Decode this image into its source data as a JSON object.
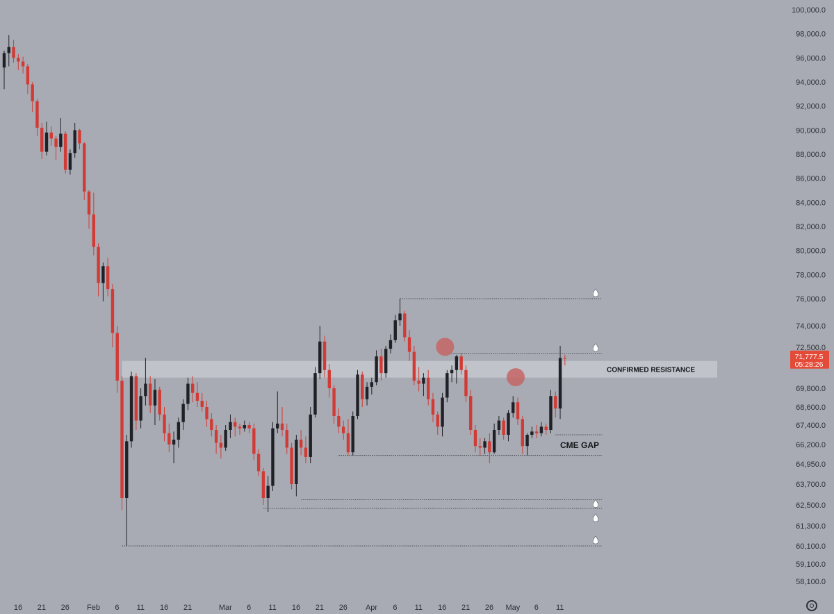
{
  "colors": {
    "background": "#a8abb3",
    "up": "#1f2126",
    "down": "#d23b35",
    "resistance_zone": "#c4c7cd",
    "marker": "#c56565",
    "price_badge": "#e44a38",
    "text": "#2c2f36"
  },
  "price_badge": {
    "price": "71,777.5",
    "countdown": "05:28:26"
  },
  "chart_data": {
    "type": "candlestick",
    "y_axis": {
      "ticks": [
        100000,
        98000,
        96000,
        94000,
        92000,
        90000,
        88000,
        86000,
        84000,
        82000,
        80000,
        78000,
        76000,
        74000,
        72500,
        69800,
        68600,
        67400,
        66200,
        64950,
        63700,
        62500,
        61300,
        60100,
        59100,
        58100
      ],
      "tick_labels": [
        "100,000.0",
        "98,000.0",
        "96,000.0",
        "94,000.0",
        "92,000.0",
        "90,000.0",
        "88,000.0",
        "86,000.0",
        "84,000.0",
        "82,000.0",
        "80,000.0",
        "78,000.0",
        "76,000.0",
        "74,000.0",
        "72,500.0",
        "69,800.0",
        "68,600.0",
        "67,400.0",
        "66,200.0",
        "64,950.0",
        "63,700.0",
        "62,500.0",
        "61,300.0",
        "60,100.0",
        "59,100.0",
        "58,100.0"
      ]
    },
    "x_axis": {
      "ticks": [
        "2025-01-16",
        "2025-01-21",
        "2025-01-26",
        "2025-02-01",
        "2025-02-06",
        "2025-02-11",
        "2025-02-16",
        "2025-02-21",
        "2025-03-01",
        "2025-03-06",
        "2025-03-11",
        "2025-03-16",
        "2025-03-21",
        "2025-03-26",
        "2025-04-01",
        "2025-04-06",
        "2025-04-11",
        "2025-04-16",
        "2025-04-21",
        "2025-04-26",
        "2025-05-01",
        "2025-05-06",
        "2025-05-11"
      ],
      "tick_labels": [
        "16",
        "21",
        "26",
        "Feb",
        "6",
        "11",
        "16",
        "21",
        "Mar",
        "6",
        "11",
        "16",
        "21",
        "26",
        "Apr",
        "6",
        "11",
        "16",
        "21",
        "26",
        "May",
        "6",
        "11"
      ]
    },
    "candles": [
      {
        "date": "2025-01-16",
        "o": 95200,
        "h": 96600,
        "l": 93400,
        "c": 96400
      },
      {
        "date": "2025-01-17",
        "o": 96400,
        "h": 97900,
        "l": 95300,
        "c": 96900
      },
      {
        "date": "2025-01-18",
        "o": 96900,
        "h": 97500,
        "l": 95600,
        "c": 96000
      },
      {
        "date": "2025-01-19",
        "o": 96000,
        "h": 96300,
        "l": 95000,
        "c": 95700
      },
      {
        "date": "2025-01-20",
        "o": 95700,
        "h": 96100,
        "l": 94700,
        "c": 95300
      },
      {
        "date": "2025-01-21",
        "o": 95300,
        "h": 95500,
        "l": 93000,
        "c": 93800
      },
      {
        "date": "2025-01-22",
        "o": 93800,
        "h": 94000,
        "l": 91500,
        "c": 92400
      },
      {
        "date": "2025-01-23",
        "o": 92400,
        "h": 92600,
        "l": 89500,
        "c": 90200
      },
      {
        "date": "2025-01-24",
        "o": 90200,
        "h": 90600,
        "l": 87600,
        "c": 88200
      },
      {
        "date": "2025-01-25",
        "o": 88200,
        "h": 90700,
        "l": 87900,
        "c": 89800
      },
      {
        "date": "2025-01-26",
        "o": 89800,
        "h": 90300,
        "l": 88700,
        "c": 89300
      },
      {
        "date": "2025-01-27",
        "o": 89300,
        "h": 89500,
        "l": 87500,
        "c": 88600
      },
      {
        "date": "2025-01-28",
        "o": 88600,
        "h": 91000,
        "l": 88200,
        "c": 89700
      },
      {
        "date": "2025-01-29",
        "o": 89700,
        "h": 89900,
        "l": 86400,
        "c": 86700
      },
      {
        "date": "2025-01-30",
        "o": 86700,
        "h": 88400,
        "l": 86300,
        "c": 88100
      },
      {
        "date": "2025-01-31",
        "o": 88100,
        "h": 90600,
        "l": 87700,
        "c": 90000
      },
      {
        "date": "2025-02-01",
        "o": 90000,
        "h": 90100,
        "l": 88400,
        "c": 88900
      },
      {
        "date": "2025-02-02",
        "o": 88900,
        "h": 89000,
        "l": 84200,
        "c": 84900
      },
      {
        "date": "2025-02-03",
        "o": 84900,
        "h": 85000,
        "l": 81800,
        "c": 83000
      },
      {
        "date": "2025-02-04",
        "o": 83000,
        "h": 84800,
        "l": 79600,
        "c": 80300
      },
      {
        "date": "2025-02-05",
        "o": 80300,
        "h": 80600,
        "l": 76200,
        "c": 77300
      },
      {
        "date": "2025-02-06",
        "o": 77300,
        "h": 79000,
        "l": 75800,
        "c": 78700
      },
      {
        "date": "2025-02-07",
        "o": 78700,
        "h": 79400,
        "l": 76200,
        "c": 76800
      },
      {
        "date": "2025-02-08",
        "o": 76800,
        "h": 77200,
        "l": 72500,
        "c": 73500
      },
      {
        "date": "2025-02-09",
        "o": 73500,
        "h": 74000,
        "l": 69500,
        "c": 70300
      },
      {
        "date": "2025-02-10",
        "o": 70300,
        "h": 70600,
        "l": 62200,
        "c": 62900
      },
      {
        "date": "2025-02-11",
        "o": 62900,
        "h": 66800,
        "l": 60100,
        "c": 66400
      },
      {
        "date": "2025-02-12",
        "o": 66400,
        "h": 70900,
        "l": 66000,
        "c": 70600
      },
      {
        "date": "2025-02-13",
        "o": 70600,
        "h": 70800,
        "l": 67100,
        "c": 67700
      },
      {
        "date": "2025-02-14",
        "o": 67700,
        "h": 69800,
        "l": 67200,
        "c": 69300
      },
      {
        "date": "2025-02-15",
        "o": 69300,
        "h": 71800,
        "l": 68700,
        "c": 70100
      },
      {
        "date": "2025-02-16",
        "o": 70100,
        "h": 70600,
        "l": 68200,
        "c": 68700
      },
      {
        "date": "2025-02-17",
        "o": 68700,
        "h": 70400,
        "l": 67400,
        "c": 69700
      },
      {
        "date": "2025-02-18",
        "o": 69700,
        "h": 69900,
        "l": 67700,
        "c": 68100
      },
      {
        "date": "2025-02-19",
        "o": 68100,
        "h": 68600,
        "l": 66400,
        "c": 66900
      },
      {
        "date": "2025-02-20",
        "o": 66900,
        "h": 67500,
        "l": 65700,
        "c": 66200
      },
      {
        "date": "2025-02-21",
        "o": 66200,
        "h": 67000,
        "l": 65000,
        "c": 66500
      },
      {
        "date": "2025-02-22",
        "o": 66500,
        "h": 67900,
        "l": 66000,
        "c": 67600
      },
      {
        "date": "2025-02-23",
        "o": 67600,
        "h": 69100,
        "l": 67100,
        "c": 68800
      },
      {
        "date": "2025-02-24",
        "o": 68800,
        "h": 70500,
        "l": 68400,
        "c": 70100
      },
      {
        "date": "2025-02-25",
        "o": 70100,
        "h": 70600,
        "l": 68900,
        "c": 69500
      },
      {
        "date": "2025-02-26",
        "o": 69500,
        "h": 70200,
        "l": 68600,
        "c": 69000
      },
      {
        "date": "2025-02-27",
        "o": 69000,
        "h": 69500,
        "l": 68300,
        "c": 68600
      },
      {
        "date": "2025-02-28",
        "o": 68600,
        "h": 69000,
        "l": 67300,
        "c": 67800
      },
      {
        "date": "2025-03-01",
        "o": 67800,
        "h": 68200,
        "l": 66700,
        "c": 67100
      },
      {
        "date": "2025-03-02",
        "o": 67100,
        "h": 67400,
        "l": 65600,
        "c": 66300
      },
      {
        "date": "2025-03-03",
        "o": 66300,
        "h": 66800,
        "l": 65300,
        "c": 66000
      },
      {
        "date": "2025-03-04",
        "o": 66000,
        "h": 67400,
        "l": 65800,
        "c": 67100
      },
      {
        "date": "2025-03-05",
        "o": 67100,
        "h": 68100,
        "l": 66600,
        "c": 67600
      },
      {
        "date": "2025-03-06",
        "o": 67600,
        "h": 67900,
        "l": 66700,
        "c": 67300
      },
      {
        "date": "2025-03-07",
        "o": 67300,
        "h": 67500,
        "l": 66800,
        "c": 67200
      },
      {
        "date": "2025-03-08",
        "o": 67200,
        "h": 67700,
        "l": 67000,
        "c": 67400
      },
      {
        "date": "2025-03-09",
        "o": 67400,
        "h": 67600,
        "l": 66900,
        "c": 67200
      },
      {
        "date": "2025-03-10",
        "o": 67200,
        "h": 67500,
        "l": 65200,
        "c": 65600
      },
      {
        "date": "2025-03-11",
        "o": 65600,
        "h": 65900,
        "l": 64200,
        "c": 64500
      },
      {
        "date": "2025-03-12",
        "o": 64500,
        "h": 64700,
        "l": 62500,
        "c": 62900
      },
      {
        "date": "2025-03-13",
        "o": 62900,
        "h": 64200,
        "l": 62100,
        "c": 63600
      },
      {
        "date": "2025-03-14",
        "o": 63600,
        "h": 67600,
        "l": 63300,
        "c": 67200
      },
      {
        "date": "2025-03-15",
        "o": 67200,
        "h": 69600,
        "l": 66900,
        "c": 67500
      },
      {
        "date": "2025-03-16",
        "o": 67500,
        "h": 68600,
        "l": 66700,
        "c": 67100
      },
      {
        "date": "2025-03-17",
        "o": 67100,
        "h": 67500,
        "l": 65600,
        "c": 66000
      },
      {
        "date": "2025-03-18",
        "o": 66000,
        "h": 66300,
        "l": 63400,
        "c": 63700
      },
      {
        "date": "2025-03-19",
        "o": 63700,
        "h": 66800,
        "l": 63000,
        "c": 66500
      },
      {
        "date": "2025-03-20",
        "o": 66500,
        "h": 67100,
        "l": 65500,
        "c": 66000
      },
      {
        "date": "2025-03-21",
        "o": 66000,
        "h": 66700,
        "l": 65000,
        "c": 65400
      },
      {
        "date": "2025-03-22",
        "o": 65400,
        "h": 68600,
        "l": 65000,
        "c": 68100
      },
      {
        "date": "2025-03-23",
        "o": 68100,
        "h": 71200,
        "l": 67900,
        "c": 70800
      },
      {
        "date": "2025-03-24",
        "o": 70800,
        "h": 74000,
        "l": 70400,
        "c": 72900
      },
      {
        "date": "2025-03-25",
        "o": 72900,
        "h": 73300,
        "l": 70500,
        "c": 71000
      },
      {
        "date": "2025-03-26",
        "o": 71000,
        "h": 71400,
        "l": 69200,
        "c": 69800
      },
      {
        "date": "2025-03-27",
        "o": 69800,
        "h": 70000,
        "l": 67500,
        "c": 68000
      },
      {
        "date": "2025-03-28",
        "o": 68000,
        "h": 68500,
        "l": 66900,
        "c": 67300
      },
      {
        "date": "2025-03-29",
        "o": 67300,
        "h": 67700,
        "l": 66500,
        "c": 66900
      },
      {
        "date": "2025-03-30",
        "o": 66900,
        "h": 67800,
        "l": 65500,
        "c": 65700
      },
      {
        "date": "2025-03-31",
        "o": 65700,
        "h": 68300,
        "l": 65500,
        "c": 68000
      },
      {
        "date": "2025-04-01",
        "o": 68000,
        "h": 71000,
        "l": 67800,
        "c": 70700
      },
      {
        "date": "2025-04-02",
        "o": 70700,
        "h": 70900,
        "l": 68600,
        "c": 69100
      },
      {
        "date": "2025-04-03",
        "o": 69100,
        "h": 70200,
        "l": 68700,
        "c": 69900
      },
      {
        "date": "2025-04-04",
        "o": 69900,
        "h": 70500,
        "l": 69400,
        "c": 70200
      },
      {
        "date": "2025-04-05",
        "o": 70200,
        "h": 72300,
        "l": 70000,
        "c": 71900
      },
      {
        "date": "2025-04-06",
        "o": 71900,
        "h": 72400,
        "l": 70300,
        "c": 70800
      },
      {
        "date": "2025-04-07",
        "o": 70800,
        "h": 72600,
        "l": 70500,
        "c": 72400
      },
      {
        "date": "2025-04-08",
        "o": 72400,
        "h": 73400,
        "l": 72100,
        "c": 73000
      },
      {
        "date": "2025-04-09",
        "o": 73000,
        "h": 74800,
        "l": 72800,
        "c": 74400
      },
      {
        "date": "2025-04-10",
        "o": 74400,
        "h": 76000,
        "l": 74000,
        "c": 74900
      },
      {
        "date": "2025-04-11",
        "o": 74900,
        "h": 75100,
        "l": 72900,
        "c": 73200
      },
      {
        "date": "2025-04-12",
        "o": 73200,
        "h": 73700,
        "l": 71600,
        "c": 72200
      },
      {
        "date": "2025-04-13",
        "o": 72200,
        "h": 72600,
        "l": 70000,
        "c": 70300
      },
      {
        "date": "2025-04-14",
        "o": 70300,
        "h": 71200,
        "l": 69600,
        "c": 70100
      },
      {
        "date": "2025-04-15",
        "o": 70100,
        "h": 70800,
        "l": 69300,
        "c": 70500
      },
      {
        "date": "2025-04-16",
        "o": 70500,
        "h": 71000,
        "l": 68700,
        "c": 69100
      },
      {
        "date": "2025-04-17",
        "o": 69100,
        "h": 69500,
        "l": 67600,
        "c": 68100
      },
      {
        "date": "2025-04-18",
        "o": 68100,
        "h": 68300,
        "l": 66800,
        "c": 67300
      },
      {
        "date": "2025-04-19",
        "o": 67300,
        "h": 69500,
        "l": 66700,
        "c": 69200
      },
      {
        "date": "2025-04-20",
        "o": 69200,
        "h": 71000,
        "l": 68900,
        "c": 70800
      },
      {
        "date": "2025-04-21",
        "o": 70800,
        "h": 71300,
        "l": 70200,
        "c": 71000
      },
      {
        "date": "2025-04-22",
        "o": 71000,
        "h": 72000,
        "l": 70100,
        "c": 71900
      },
      {
        "date": "2025-04-23",
        "o": 71900,
        "h": 72100,
        "l": 70700,
        "c": 71000
      },
      {
        "date": "2025-04-24",
        "o": 71000,
        "h": 71300,
        "l": 68900,
        "c": 69300
      },
      {
        "date": "2025-04-25",
        "o": 69300,
        "h": 69700,
        "l": 66800,
        "c": 67100
      },
      {
        "date": "2025-04-26",
        "o": 67100,
        "h": 67400,
        "l": 65700,
        "c": 66100
      },
      {
        "date": "2025-04-27",
        "o": 66100,
        "h": 66600,
        "l": 65500,
        "c": 66000
      },
      {
        "date": "2025-04-28",
        "o": 66000,
        "h": 66600,
        "l": 65600,
        "c": 66400
      },
      {
        "date": "2025-04-29",
        "o": 66400,
        "h": 66900,
        "l": 65000,
        "c": 65700
      },
      {
        "date": "2025-04-30",
        "o": 65700,
        "h": 67500,
        "l": 65600,
        "c": 67100
      },
      {
        "date": "2025-05-01",
        "o": 67100,
        "h": 68000,
        "l": 66800,
        "c": 67700
      },
      {
        "date": "2025-05-02",
        "o": 67700,
        "h": 67900,
        "l": 66500,
        "c": 66800
      },
      {
        "date": "2025-05-03",
        "o": 66800,
        "h": 68400,
        "l": 66400,
        "c": 68200
      },
      {
        "date": "2025-05-04",
        "o": 68200,
        "h": 69300,
        "l": 67900,
        "c": 68900
      },
      {
        "date": "2025-05-05",
        "o": 68900,
        "h": 69200,
        "l": 67400,
        "c": 67800
      },
      {
        "date": "2025-05-06",
        "o": 67800,
        "h": 68000,
        "l": 65600,
        "c": 66100
      },
      {
        "date": "2025-05-07",
        "o": 66100,
        "h": 66900,
        "l": 65500,
        "c": 66800
      },
      {
        "date": "2025-05-08",
        "o": 66800,
        "h": 67300,
        "l": 66600,
        "c": 67000
      },
      {
        "date": "2025-05-09",
        "o": 67000,
        "h": 67400,
        "l": 66600,
        "c": 66900
      },
      {
        "date": "2025-05-10",
        "o": 66900,
        "h": 67600,
        "l": 66700,
        "c": 67300
      },
      {
        "date": "2025-05-11",
        "o": 67300,
        "h": 67500,
        "l": 66800,
        "c": 67100
      },
      {
        "date": "2025-05-12",
        "o": 67100,
        "h": 69700,
        "l": 66900,
        "c": 69300
      },
      {
        "date": "2025-05-13",
        "o": 69300,
        "h": 69600,
        "l": 67900,
        "c": 68500
      },
      {
        "date": "2025-05-14",
        "o": 68500,
        "h": 72600,
        "l": 67800,
        "c": 71800
      },
      {
        "date": "2025-05-15",
        "o": 71800,
        "h": 72000,
        "l": 71300,
        "c": 71777.5
      }
    ],
    "annotations": {
      "resistance_zone": {
        "label": "CONFIRMED RESISTANCE",
        "from": 70500,
        "to": 71600
      },
      "cme_gap": {
        "label": "CME GAP",
        "from": 65500,
        "to": 66800
      },
      "levels": [
        {
          "price": 76000,
          "liquidity_drops": 1
        },
        {
          "price": 72100,
          "liquidity_drops": 1
        },
        {
          "price": 62800,
          "liquidity_drops": 1
        },
        {
          "price": 62300,
          "liquidity_drops": 1
        },
        {
          "price": 60100,
          "liquidity_drops": 1
        }
      ],
      "swing_markers": [
        {
          "date": "2025-04-20",
          "price": 72300
        },
        {
          "date": "2025-05-05",
          "price": 70300
        }
      ]
    }
  }
}
